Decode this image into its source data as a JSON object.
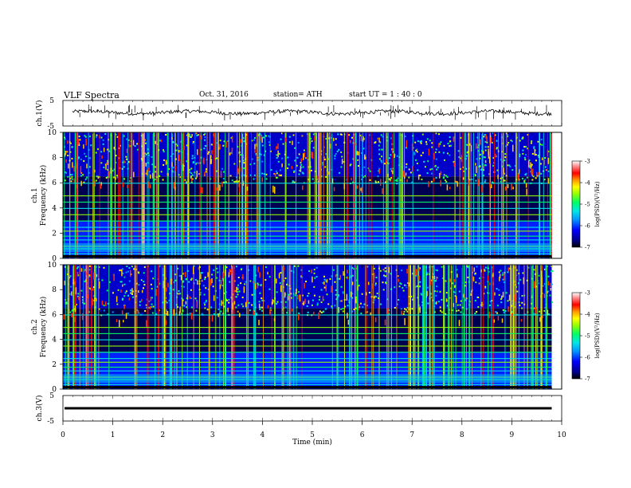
{
  "header": {
    "title": "VLF  Spectra",
    "date": "Oct. 31, 2016",
    "station": "station= ATH",
    "start": "start  UT  =    1  : 40 : 0"
  },
  "chart_data": [
    {
      "type": "line",
      "panel": "ch1-waveform",
      "ylabel": "ch.1(V)",
      "ylim": [
        -5,
        5
      ],
      "yticks": [
        5,
        -5
      ],
      "description_level": 0.3
    },
    {
      "type": "heatmap",
      "panel": "ch1-spectrogram",
      "ylabel_top": "ch.1",
      "ylabel": "Frequency  (kHz)",
      "ylim": [
        0,
        10
      ],
      "yticks": [
        0,
        2,
        4,
        6,
        8,
        10
      ],
      "colorbar": {
        "label": "log(PSD)(V²/Hz)",
        "range": [
          -7,
          -3
        ],
        "ticks": [
          "-3",
          "-4",
          "-5",
          "-6",
          "-7"
        ]
      }
    },
    {
      "type": "heatmap",
      "panel": "ch2-spectrogram",
      "ylabel_top": "ch.2",
      "ylabel": "Frequency  (kHz)",
      "ylim": [
        0,
        10
      ],
      "yticks": [
        0,
        2,
        4,
        6,
        8,
        10
      ],
      "colorbar": {
        "label": "log(PSD)(V²/Hz)",
        "range": [
          -7,
          -3
        ],
        "ticks": [
          "-3",
          "-4",
          "-5",
          "-6",
          "-7"
        ]
      }
    },
    {
      "type": "line",
      "panel": "ch3-waveform",
      "ylabel": "ch.3(V)",
      "ylim": [
        -5,
        5
      ],
      "yticks": [
        5,
        -5
      ],
      "xlabel": "Time  (min)",
      "xlim": [
        0,
        10
      ],
      "xticks": [
        0,
        1,
        2,
        3,
        4,
        5,
        6,
        7,
        8,
        9,
        10
      ],
      "data_end_min": 9.8,
      "level": 0
    }
  ],
  "colors": {
    "colormap": [
      "#000000",
      "#00008c",
      "#0000ff",
      "#0096ff",
      "#00e6e6",
      "#00ff64",
      "#96ff00",
      "#ffff00",
      "#ff9600",
      "#ff0000",
      "#ff8c8c",
      "#ffffff"
    ],
    "axis": "#000000",
    "line": "#000000"
  }
}
